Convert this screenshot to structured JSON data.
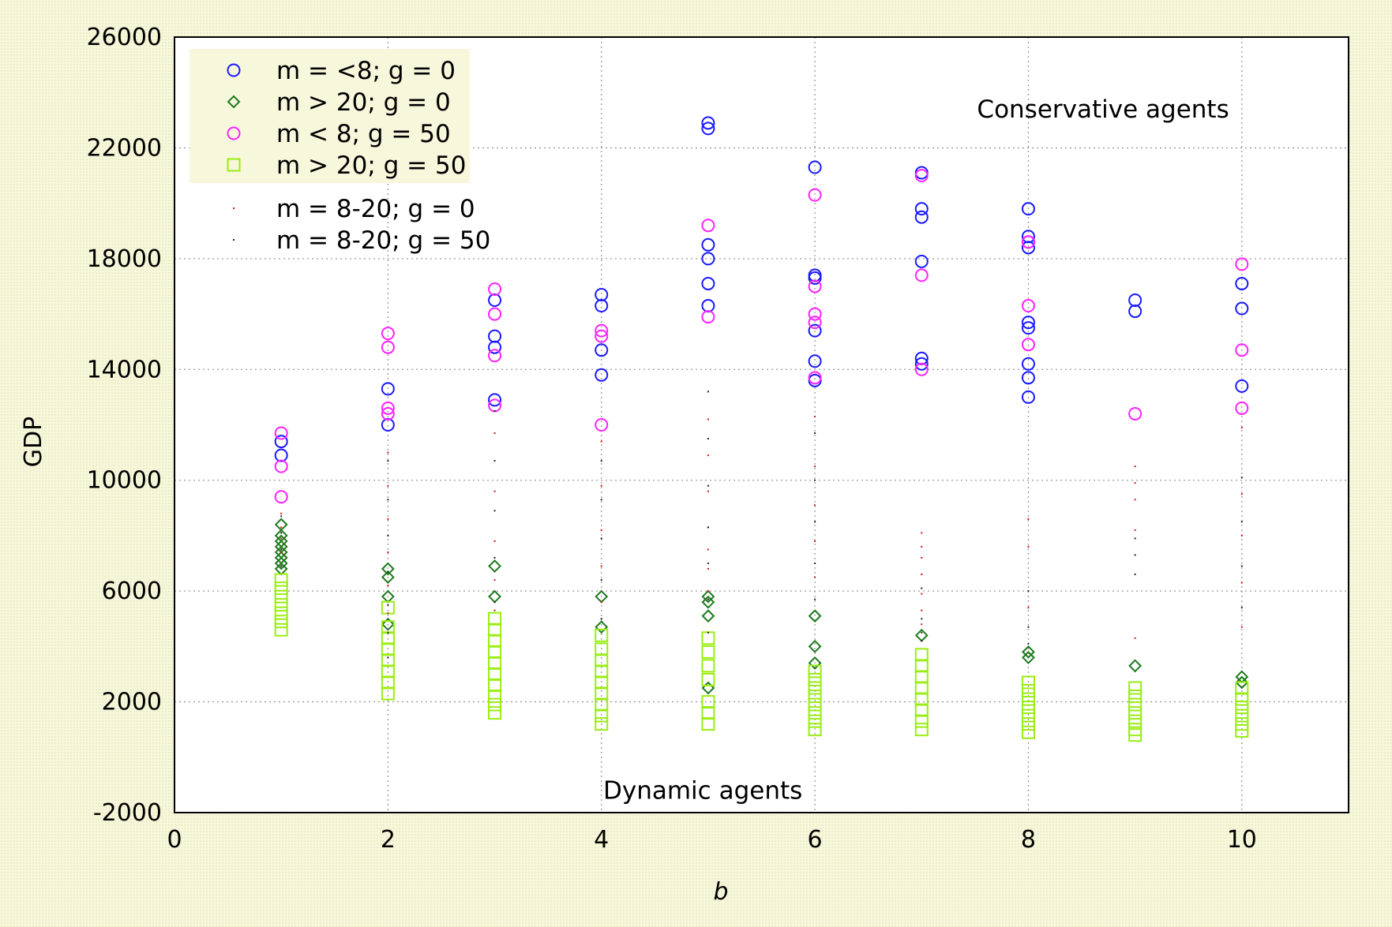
{
  "chart_data": {
    "type": "scatter",
    "title": "",
    "xlabel": "b",
    "ylabel": "GDP",
    "xlim": [
      0,
      11
    ],
    "ylim": [
      -2000,
      26000
    ],
    "xticks": [
      0,
      2,
      4,
      6,
      8,
      10
    ],
    "yticks": [
      -2000,
      2000,
      6000,
      10000,
      14000,
      18000,
      22000,
      26000
    ],
    "x_tick_labels": [
      "0",
      "2",
      "4",
      "6",
      "8",
      "10"
    ],
    "y_tick_labels": [
      "-2000",
      "2000",
      "6000",
      "10000",
      "14000",
      "18000",
      "22000",
      "26000"
    ],
    "grid": true,
    "legend_position": "top-left",
    "annotations": [
      {
        "text": "Conservative agents",
        "x": 8.7,
        "y": 23100
      },
      {
        "text": "Dynamic agents",
        "x": 4.95,
        "y": -1500
      }
    ],
    "series": [
      {
        "name": "m = <8; g = 0",
        "marker": "circle",
        "color": "#1a1aff",
        "points": [
          [
            1,
            11400
          ],
          [
            1,
            10900
          ],
          [
            2,
            13300
          ],
          [
            2,
            12000
          ],
          [
            3,
            16500
          ],
          [
            3,
            15200
          ],
          [
            3,
            14800
          ],
          [
            3,
            12900
          ],
          [
            4,
            16700
          ],
          [
            4,
            16300
          ],
          [
            4,
            14700
          ],
          [
            4,
            13800
          ],
          [
            5,
            22900
          ],
          [
            5,
            22700
          ],
          [
            5,
            18500
          ],
          [
            5,
            18000
          ],
          [
            5,
            17100
          ],
          [
            5,
            16300
          ],
          [
            6,
            21300
          ],
          [
            6,
            17400
          ],
          [
            6,
            17300
          ],
          [
            6,
            15400
          ],
          [
            6,
            14300
          ],
          [
            6,
            13600
          ],
          [
            7,
            21100
          ],
          [
            7,
            19800
          ],
          [
            7,
            19500
          ],
          [
            7,
            17900
          ],
          [
            7,
            14400
          ],
          [
            7,
            14200
          ],
          [
            8,
            19800
          ],
          [
            8,
            18800
          ],
          [
            8,
            18600
          ],
          [
            8,
            18400
          ],
          [
            8,
            15700
          ],
          [
            8,
            15500
          ],
          [
            8,
            14200
          ],
          [
            8,
            13700
          ],
          [
            8,
            13000
          ],
          [
            9,
            16500
          ],
          [
            9,
            16100
          ],
          [
            10,
            17100
          ],
          [
            10,
            16200
          ],
          [
            10,
            13400
          ]
        ]
      },
      {
        "name": "m > 20; g = 0",
        "marker": "diamond",
        "color": "#1e7a1e",
        "points": [
          [
            1,
            8400
          ],
          [
            1,
            8000
          ],
          [
            1,
            7800
          ],
          [
            1,
            7600
          ],
          [
            1,
            7400
          ],
          [
            1,
            7200
          ],
          [
            1,
            7000
          ],
          [
            1,
            6800
          ],
          [
            2,
            6800
          ],
          [
            2,
            6500
          ],
          [
            2,
            5800
          ],
          [
            2,
            4800
          ],
          [
            3,
            6900
          ],
          [
            3,
            5800
          ],
          [
            4,
            5800
          ],
          [
            4,
            4700
          ],
          [
            5,
            5800
          ],
          [
            5,
            5600
          ],
          [
            5,
            5100
          ],
          [
            5,
            2500
          ],
          [
            6,
            5100
          ],
          [
            6,
            4000
          ],
          [
            6,
            3400
          ],
          [
            7,
            4400
          ],
          [
            8,
            3800
          ],
          [
            8,
            3600
          ],
          [
            9,
            3300
          ],
          [
            10,
            2900
          ],
          [
            10,
            2700
          ]
        ]
      },
      {
        "name": "m < 8; g = 50",
        "marker": "circle",
        "color": "#ff22ff",
        "points": [
          [
            1,
            11700
          ],
          [
            1,
            10500
          ],
          [
            1,
            9400
          ],
          [
            2,
            15300
          ],
          [
            2,
            14800
          ],
          [
            2,
            12600
          ],
          [
            2,
            12400
          ],
          [
            3,
            16900
          ],
          [
            3,
            16000
          ],
          [
            3,
            14500
          ],
          [
            3,
            12700
          ],
          [
            4,
            15400
          ],
          [
            4,
            15200
          ],
          [
            4,
            12000
          ],
          [
            5,
            19200
          ],
          [
            5,
            15900
          ],
          [
            6,
            20300
          ],
          [
            6,
            17000
          ],
          [
            6,
            16000
          ],
          [
            6,
            15700
          ],
          [
            6,
            13700
          ],
          [
            7,
            21000
          ],
          [
            7,
            17400
          ],
          [
            7,
            14000
          ],
          [
            8,
            16300
          ],
          [
            8,
            14900
          ],
          [
            8,
            18600
          ],
          [
            9,
            12400
          ],
          [
            10,
            17800
          ],
          [
            10,
            14700
          ],
          [
            10,
            12600
          ]
        ]
      },
      {
        "name": "m > 20; g = 50",
        "marker": "square",
        "color": "#99ee11",
        "points": [
          [
            1,
            6400
          ],
          [
            1,
            6100
          ],
          [
            1,
            5800
          ],
          [
            1,
            5500
          ],
          [
            1,
            5200
          ],
          [
            1,
            4900
          ],
          [
            1,
            4600
          ],
          [
            2,
            5400
          ],
          [
            2,
            4700
          ],
          [
            2,
            4300
          ],
          [
            2,
            3900
          ],
          [
            2,
            3500
          ],
          [
            2,
            3100
          ],
          [
            2,
            2700
          ],
          [
            2,
            2300
          ],
          [
            3,
            5000
          ],
          [
            3,
            4600
          ],
          [
            3,
            4200
          ],
          [
            3,
            3800
          ],
          [
            3,
            3400
          ],
          [
            3,
            3000
          ],
          [
            3,
            2600
          ],
          [
            3,
            2200
          ],
          [
            3,
            1900
          ],
          [
            3,
            1600
          ],
          [
            4,
            4400
          ],
          [
            4,
            3900
          ],
          [
            4,
            3500
          ],
          [
            4,
            3100
          ],
          [
            4,
            2700
          ],
          [
            4,
            2300
          ],
          [
            4,
            1900
          ],
          [
            4,
            1500
          ],
          [
            4,
            1200
          ],
          [
            5,
            4300
          ],
          [
            5,
            3800
          ],
          [
            5,
            3300
          ],
          [
            5,
            2800
          ],
          [
            5,
            2000
          ],
          [
            5,
            1600
          ],
          [
            5,
            1200
          ],
          [
            6,
            3100
          ],
          [
            6,
            2800
          ],
          [
            6,
            2500
          ],
          [
            6,
            2200
          ],
          [
            6,
            1900
          ],
          [
            6,
            1600
          ],
          [
            6,
            1300
          ],
          [
            6,
            1000
          ],
          [
            7,
            3700
          ],
          [
            7,
            3300
          ],
          [
            7,
            2900
          ],
          [
            7,
            2500
          ],
          [
            7,
            2100
          ],
          [
            7,
            1700
          ],
          [
            7,
            1300
          ],
          [
            7,
            1000
          ],
          [
            8,
            2700
          ],
          [
            8,
            2400
          ],
          [
            8,
            2100
          ],
          [
            8,
            1800
          ],
          [
            8,
            1500
          ],
          [
            8,
            1200
          ],
          [
            8,
            900
          ],
          [
            9,
            2500
          ],
          [
            9,
            2200
          ],
          [
            9,
            1900
          ],
          [
            9,
            1600
          ],
          [
            9,
            1300
          ],
          [
            9,
            1000
          ],
          [
            9,
            800
          ],
          [
            10,
            2500
          ],
          [
            10,
            2100
          ],
          [
            10,
            1800
          ],
          [
            10,
            1500
          ],
          [
            10,
            1200
          ],
          [
            10,
            950
          ]
        ]
      },
      {
        "name": "m = 8-20; g = 0",
        "marker": "dot",
        "color": "#dd1111",
        "points": [
          [
            1,
            8800
          ],
          [
            1,
            8300
          ],
          [
            1,
            7900
          ],
          [
            1,
            7400
          ],
          [
            1,
            6900
          ],
          [
            2,
            11000
          ],
          [
            2,
            9800
          ],
          [
            2,
            8600
          ],
          [
            2,
            7400
          ],
          [
            2,
            6200
          ],
          [
            2,
            5200
          ],
          [
            3,
            11700
          ],
          [
            3,
            9600
          ],
          [
            3,
            7800
          ],
          [
            3,
            6400
          ],
          [
            3,
            5300
          ],
          [
            4,
            11400
          ],
          [
            4,
            9800
          ],
          [
            4,
            8200
          ],
          [
            4,
            6900
          ],
          [
            4,
            5600
          ],
          [
            5,
            12200
          ],
          [
            5,
            10900
          ],
          [
            5,
            9600
          ],
          [
            5,
            8300
          ],
          [
            5,
            7500
          ],
          [
            5,
            6800
          ],
          [
            5,
            6000
          ],
          [
            6,
            12300
          ],
          [
            6,
            10500
          ],
          [
            6,
            9100
          ],
          [
            6,
            7800
          ],
          [
            6,
            6500
          ],
          [
            7,
            8100
          ],
          [
            7,
            7600
          ],
          [
            7,
            7200
          ],
          [
            7,
            6600
          ],
          [
            7,
            5900
          ],
          [
            7,
            5300
          ],
          [
            7,
            4800
          ],
          [
            8,
            8600
          ],
          [
            8,
            7600
          ],
          [
            8,
            5400
          ],
          [
            9,
            10500
          ],
          [
            9,
            9900
          ],
          [
            9,
            9300
          ],
          [
            9,
            8200
          ],
          [
            9,
            4300
          ],
          [
            10,
            11900
          ],
          [
            10,
            9500
          ],
          [
            10,
            8000
          ],
          [
            10,
            6300
          ],
          [
            10,
            4700
          ]
        ]
      },
      {
        "name": "m = 8-20; g = 50",
        "marker": "dot",
        "color": "#222222",
        "points": [
          [
            1,
            8700
          ],
          [
            1,
            8100
          ],
          [
            1,
            7500
          ],
          [
            1,
            6900
          ],
          [
            2,
            10700
          ],
          [
            2,
            9300
          ],
          [
            2,
            8000
          ],
          [
            2,
            6700
          ],
          [
            2,
            5500
          ],
          [
            2,
            4500
          ],
          [
            2,
            3600
          ],
          [
            3,
            12500
          ],
          [
            3,
            10700
          ],
          [
            3,
            8900
          ],
          [
            3,
            7200
          ],
          [
            3,
            5600
          ],
          [
            4,
            10700
          ],
          [
            4,
            9300
          ],
          [
            4,
            7900
          ],
          [
            4,
            6400
          ],
          [
            4,
            5000
          ],
          [
            5,
            13200
          ],
          [
            5,
            11500
          ],
          [
            5,
            9800
          ],
          [
            5,
            8300
          ],
          [
            5,
            7000
          ],
          [
            5,
            5700
          ],
          [
            5,
            4500
          ],
          [
            6,
            11700
          ],
          [
            6,
            10000
          ],
          [
            6,
            8500
          ],
          [
            6,
            7000
          ],
          [
            6,
            5700
          ],
          [
            7,
            6100
          ],
          [
            7,
            5000
          ],
          [
            7,
            4500
          ],
          [
            7,
            4200
          ],
          [
            8,
            6000
          ],
          [
            8,
            4700
          ],
          [
            8,
            4100
          ],
          [
            9,
            7900
          ],
          [
            9,
            7300
          ],
          [
            9,
            6600
          ],
          [
            10,
            10100
          ],
          [
            10,
            8500
          ],
          [
            10,
            6900
          ],
          [
            10,
            5400
          ]
        ]
      }
    ]
  }
}
